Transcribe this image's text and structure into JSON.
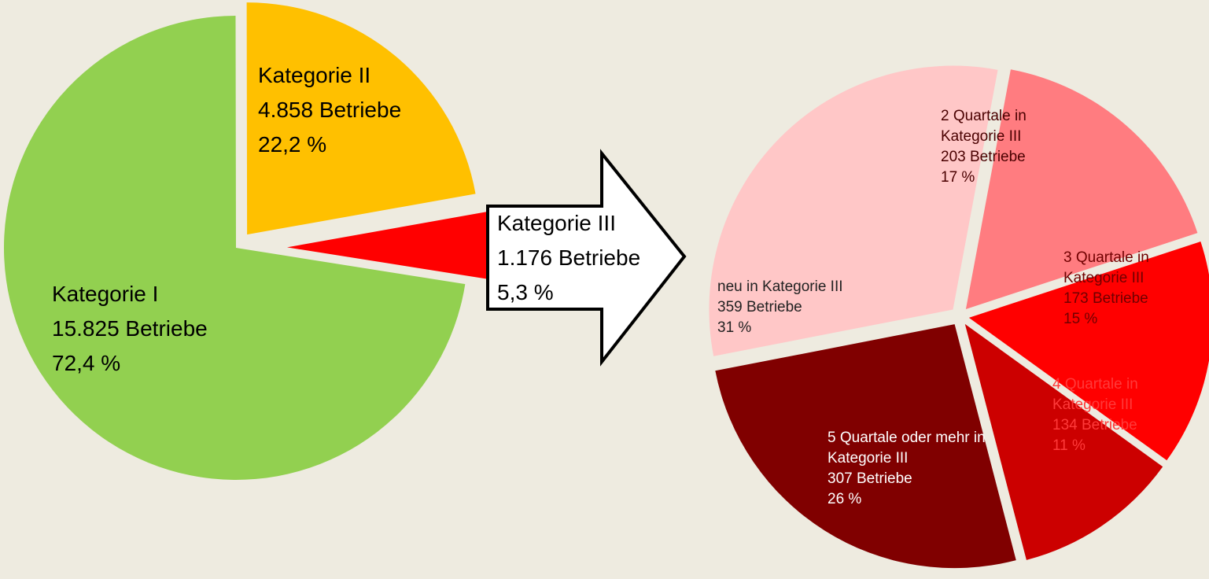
{
  "chart_data": [
    {
      "type": "pie",
      "categories": [
        "Kategorie I",
        "Kategorie II",
        "Kategorie III"
      ],
      "count_labels": [
        "15.825 Betriebe",
        "4.858 Betriebe",
        "1.176 Betriebe"
      ],
      "values": [
        72.4,
        22.2,
        5.3
      ],
      "value_labels": [
        "72,4 %",
        "22,2 %",
        "5,3 %"
      ],
      "colors": [
        "#92d050",
        "#ffc000",
        "#ff0000"
      ]
    },
    {
      "type": "pie",
      "categories": [
        "neu in Kategorie III",
        "2 Quartale in Kategorie III",
        "3 Quartale in Kategorie III",
        "4 Quartale in Kategorie III",
        "5 Quartale oder mehr in  Kategorie III"
      ],
      "count_labels": [
        "359 Betriebe",
        "203 Betriebe",
        "173 Betriebe",
        "134 Betriebe",
        "307 Betriebe"
      ],
      "values": [
        31,
        17,
        15,
        11,
        26
      ],
      "value_labels": [
        "31 %",
        "17 %",
        "15 %",
        "11 %",
        "26 %"
      ],
      "colors": [
        "#ffc7c7",
        "#ff7c80",
        "#ff0000",
        "#cc0000",
        "#800000"
      ]
    }
  ]
}
